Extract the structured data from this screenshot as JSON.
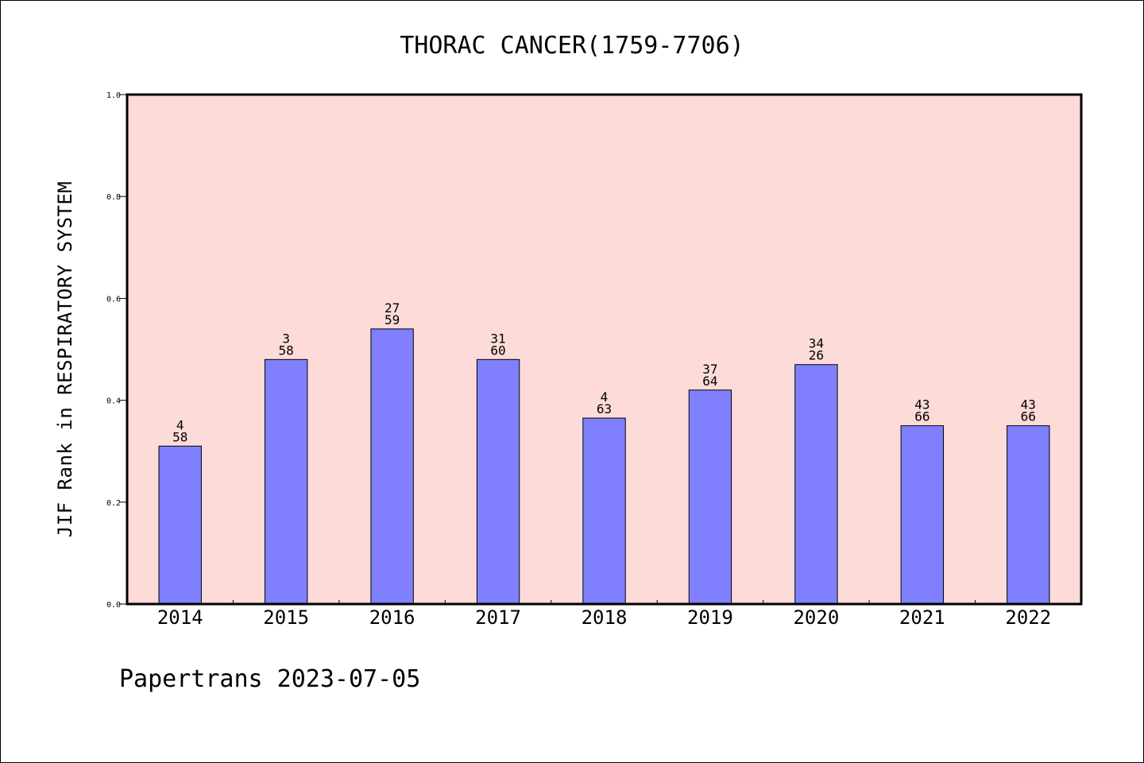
{
  "chart_data": {
    "type": "bar",
    "title": "THORAC CANCER(1759-7706)",
    "ylabel": "JIF Rank in RESPIRATORY SYSTEM",
    "xlabel": "",
    "ylim": [
      0,
      1.0
    ],
    "yticks": [
      "0.0",
      "0.2",
      "0.4",
      "0.6",
      "0.8",
      "1.0"
    ],
    "categories": [
      "2014",
      "2015",
      "2016",
      "2017",
      "2018",
      "2019",
      "2020",
      "2021",
      "2022"
    ],
    "values": [
      0.31,
      0.48,
      0.54,
      0.48,
      0.365,
      0.42,
      0.47,
      0.35,
      0.35
    ],
    "bar_labels": [
      [
        "4",
        "58"
      ],
      [
        "3",
        "58"
      ],
      [
        "27",
        "59"
      ],
      [
        "31",
        "60"
      ],
      [
        "4",
        "63"
      ],
      [
        "37",
        "64"
      ],
      [
        "34",
        "26"
      ],
      [
        "43",
        "66"
      ],
      [
        "43",
        "66"
      ]
    ],
    "grid": false,
    "colors": {
      "bar": "#8080ff",
      "plot_background": "#fddbd8",
      "axis": "#000000"
    }
  },
  "footer": "Papertrans 2023-07-05"
}
